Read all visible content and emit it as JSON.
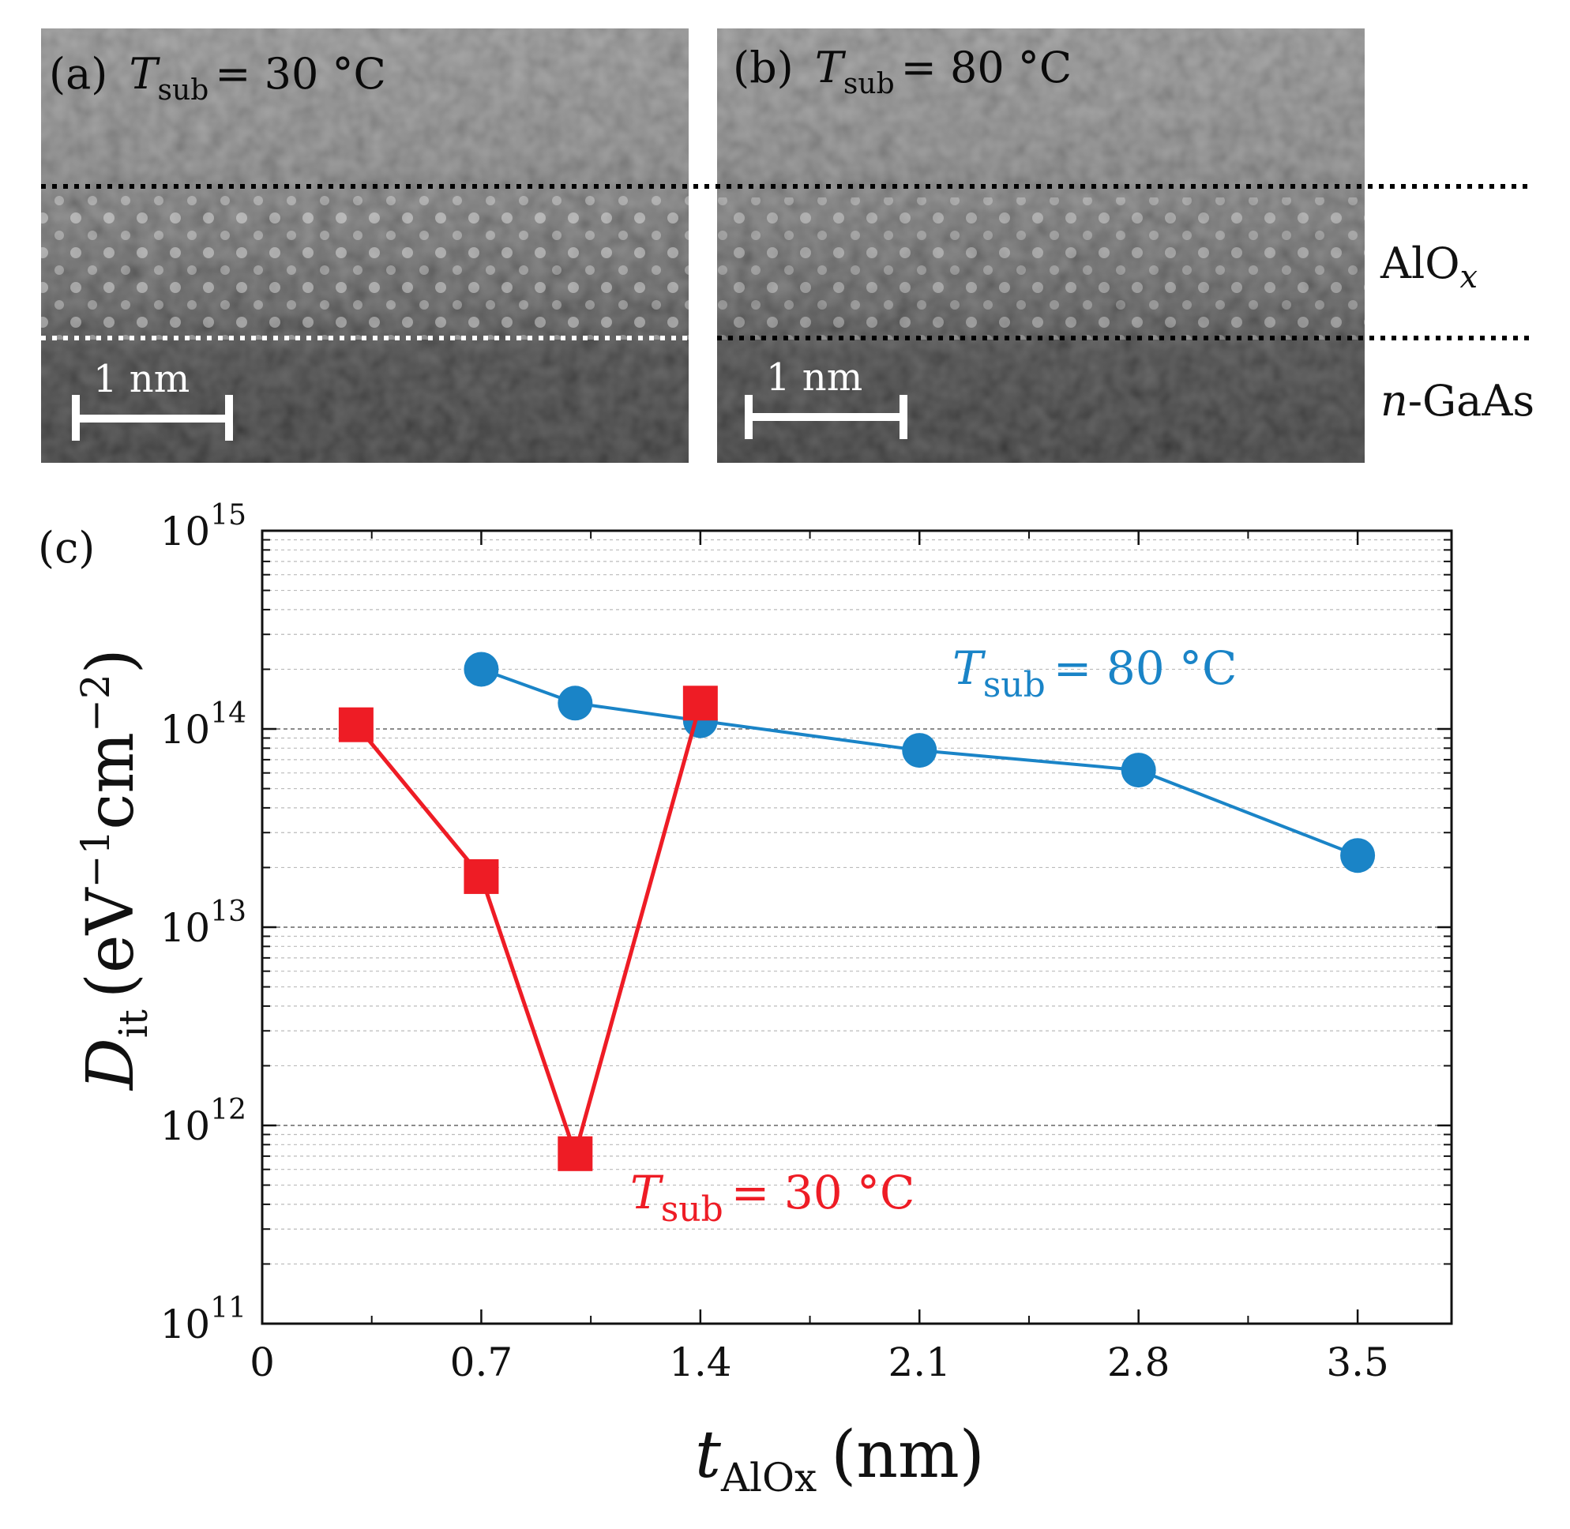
{
  "panels": {
    "a": {
      "label": "(a)",
      "t_sym": "T",
      "t_sub": "sub",
      "t_value": "= 30 °C",
      "scale": "1 nm"
    },
    "b": {
      "label": "(b)",
      "t_sym": "T",
      "t_sub": "sub",
      "t_value": "= 80 °C",
      "scale": "1 nm"
    },
    "c": {
      "label": "(c)"
    }
  },
  "layers": {
    "top": {
      "main": "AlO",
      "sub": "x"
    },
    "bottom": {
      "prefix": "n",
      "main": "-GaAs"
    }
  },
  "chart_data": {
    "type": "line",
    "yscale": "log",
    "xlim": [
      0,
      3.8
    ],
    "ylim": [
      100000000000.0,
      1000000000000000.0
    ],
    "xticks": [
      0,
      0.7,
      1.4,
      2.1,
      2.8,
      3.5
    ],
    "xtick_labels": [
      "0",
      "0.7",
      "1.4",
      "2.1",
      "2.8",
      "3.5"
    ],
    "yticks": [
      {
        "value": 100000000000.0,
        "base": "10",
        "exp": "11"
      },
      {
        "value": 1000000000000.0,
        "base": "10",
        "exp": "12"
      },
      {
        "value": 10000000000000.0,
        "base": "10",
        "exp": "13"
      },
      {
        "value": 100000000000000.0,
        "base": "10",
        "exp": "14"
      },
      {
        "value": 1000000000000000.0,
        "base": "10",
        "exp": "15"
      }
    ],
    "xlabel": {
      "main": "t",
      "sub": "AlOx",
      "unit": "(nm)"
    },
    "ylabel": {
      "main": "D",
      "sub": "it",
      "unit": "(eV",
      "exp1": "−1",
      "mid": "cm",
      "exp2": "−2",
      "close": ")"
    },
    "grid": true,
    "series": [
      {
        "name": "Tsub = 80 °C",
        "label": {
          "sym": "T",
          "sub": "sub",
          "value": "= 80 °C"
        },
        "color": "#1a84c7",
        "marker": "circle",
        "x": [
          0.7,
          1.0,
          1.4,
          2.1,
          2.8,
          3.5
        ],
        "y": [
          200000000000000.0,
          135000000000000.0,
          110000000000000.0,
          78000000000000.0,
          62000000000000.0,
          23000000000000.0
        ]
      },
      {
        "name": "Tsub = 30 °C",
        "label": {
          "sym": "T",
          "sub": "sub",
          "value": "= 30 °C"
        },
        "color": "#ee1c25",
        "marker": "square",
        "x": [
          0.3,
          0.7,
          1.0,
          1.4
        ],
        "y": [
          105000000000000.0,
          18000000000000.0,
          720000000000.0,
          135000000000000.0
        ]
      }
    ]
  }
}
